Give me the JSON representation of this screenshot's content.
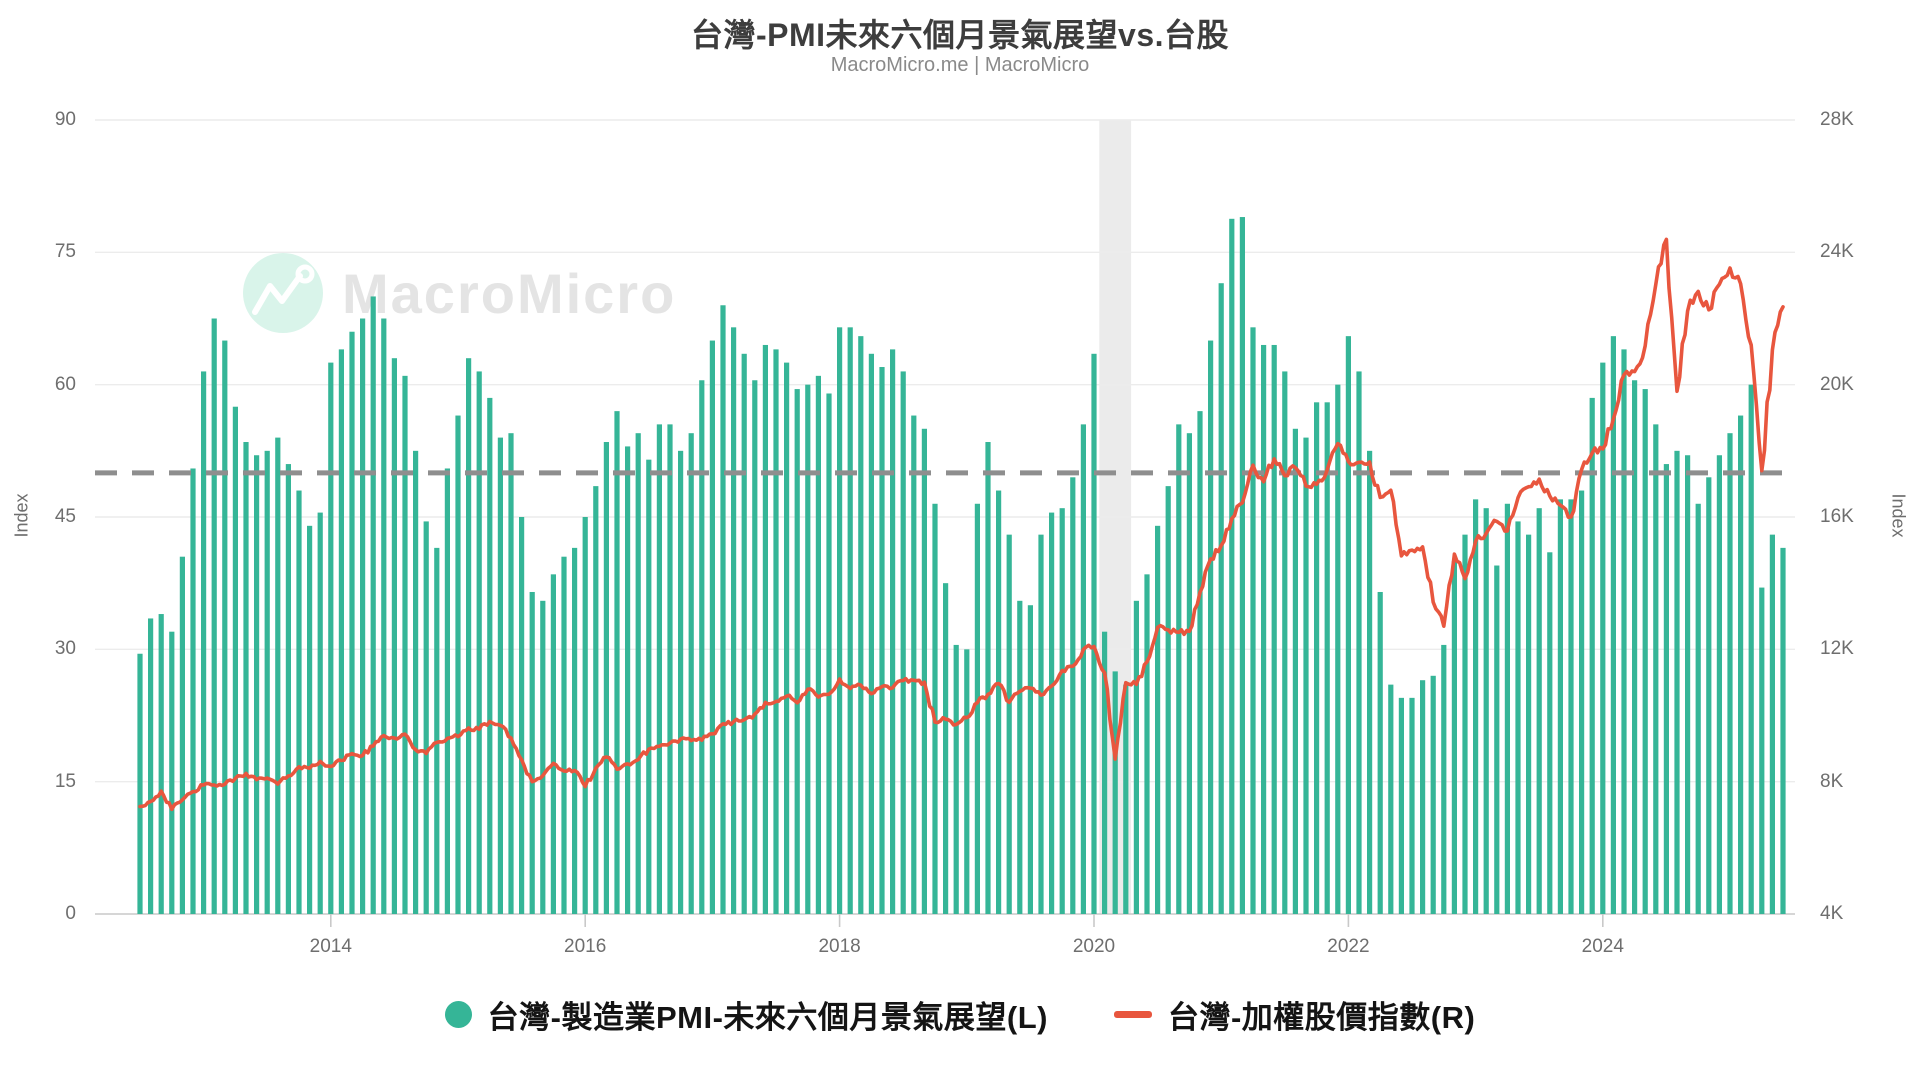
{
  "header": {
    "title": "台灣-PMI未來六個月景氣展望vs.台股",
    "subtitle": "MacroMicro.me | MacroMicro"
  },
  "watermark": {
    "text": "MacroMicro"
  },
  "colors": {
    "bar": "#35b597",
    "line": "#e8563e",
    "reference_dash": "#8e8e8e",
    "grid": "#ececec",
    "axis_baseline": "#c9c9c9",
    "recession_band": "#ebebeb",
    "watermark_circle": "#d9f4ea"
  },
  "chart_data": {
    "type": "combo",
    "title": "台灣-PMI未來六個月景氣展望vs.台股",
    "x_start": "2012-07",
    "frequency": "monthly",
    "x_tick_labels": [
      "2014",
      "2016",
      "2018",
      "2020",
      "2022",
      "2024"
    ],
    "x_tick_month_index": [
      18,
      42,
      66,
      90,
      114,
      138
    ],
    "left_axis": {
      "label": "Index",
      "ticks": [
        0,
        15,
        30,
        45,
        60,
        75,
        90
      ],
      "range": [
        0,
        90
      ]
    },
    "right_axis": {
      "label": "Index",
      "tick_values": [
        4000,
        8000,
        12000,
        16000,
        20000,
        24000,
        28000
      ],
      "tick_labels": [
        "4K",
        "8K",
        "12K",
        "16K",
        "20K",
        "24K",
        "28K"
      ],
      "range": [
        4000,
        28000
      ]
    },
    "reference_line": {
      "axis": "left",
      "value": 50,
      "style": "dashed"
    },
    "recession_band": {
      "from": "2020-02",
      "to": "2020-04",
      "from_index": 91,
      "to_index": 93
    },
    "grid": true,
    "legend_position": "bottom",
    "series": [
      {
        "name": "台灣-製造業PMI-未來六個月景氣展望(L)",
        "type": "bar",
        "axis": "left",
        "color": "#35b597",
        "marker": "circle",
        "values": [
          29.5,
          33.5,
          34,
          32,
          40.5,
          50.5,
          61.5,
          67.5,
          65,
          57.5,
          53.5,
          52,
          52.5,
          54,
          51,
          48,
          44,
          45.5,
          62.5,
          64,
          66,
          67.5,
          70,
          67.5,
          63,
          61,
          52.5,
          44.5,
          41.5,
          50.5,
          56.5,
          63,
          61.5,
          58.5,
          54,
          54.5,
          45,
          36.5,
          35.5,
          38.5,
          40.5,
          41.5,
          45,
          48.5,
          53.5,
          57,
          53,
          54.5,
          51.5,
          55.5,
          55.5,
          52.5,
          54.5,
          60.5,
          65,
          69,
          66.5,
          63.5,
          60.5,
          64.5,
          64,
          62.5,
          59.5,
          60,
          61,
          59,
          66.5,
          66.5,
          65.5,
          63.5,
          62,
          64,
          61.5,
          56.5,
          55,
          46.5,
          37.5,
          30.5,
          30,
          46.5,
          53.5,
          48,
          43,
          35.5,
          35,
          43,
          45.5,
          46,
          49.5,
          55.5,
          63.5,
          32,
          27.5,
          26,
          35.5,
          38.5,
          44,
          48.5,
          55.5,
          54.5,
          57,
          65,
          71.5,
          78.8,
          79,
          66.5,
          64.5,
          64.5,
          61.5,
          55,
          54,
          58,
          58,
          60,
          65.5,
          61.5,
          52.5,
          36.5,
          26,
          24.5,
          24.5,
          26.5,
          27,
          30.5,
          40,
          43,
          47,
          46,
          39.5,
          46.5,
          44.5,
          43,
          46,
          41,
          47,
          47,
          48,
          58.5,
          62.5,
          65.5,
          64,
          60.5,
          59.5,
          55.5,
          51,
          52.5,
          52,
          46.5,
          49.5,
          52,
          54.5,
          56.5,
          60,
          37,
          43,
          41.5
        ]
      },
      {
        "name": "台灣-加權股價指數(R)",
        "type": "line",
        "axis": "right",
        "color": "#e8563e",
        "marker": "line",
        "values": [
          7250,
          7400,
          7715,
          7165,
          7450,
          7700,
          7900,
          7898,
          7919,
          8100,
          8250,
          8062,
          8108,
          7925,
          8173,
          8450,
          8407,
          8612,
          8462,
          8640,
          8849,
          8791,
          9076,
          9393,
          9316,
          9436,
          8967,
          8850,
          9187,
          9307,
          9362,
          9622,
          9586,
          9820,
          9701,
          9323,
          8665,
          8000,
          8181,
          8554,
          8321,
          8338,
          7850,
          8411,
          8744,
          8378,
          8536,
          8666,
          8984,
          9069,
          9166,
          9290,
          9241,
          9254,
          9448,
          9750,
          9812,
          9872,
          10041,
          10395,
          10427,
          10586,
          10384,
          10794,
          10560,
          10643,
          11104,
          10815,
          10919,
          10658,
          10874,
          10837,
          11058,
          11064,
          11006,
          9802,
          9888,
          9727,
          9932,
          10389,
          10641,
          10967,
          10400,
          10731,
          10824,
          10618,
          10893,
          11359,
          11490,
          11997,
          12086,
          11292,
          8681,
          10992,
          10942,
          11621,
          12664,
          12591,
          12515,
          12546,
          13723,
          14732,
          15138,
          15953,
          16431,
          17566,
          17068,
          17755,
          17247,
          17490,
          16935,
          16987,
          17428,
          18218,
          17674,
          17652,
          17663,
          16592,
          16807,
          14825,
          15000,
          15095,
          13425,
          12700,
          14880,
          14137,
          15265,
          15503,
          15868,
          15579,
          16579,
          16916,
          17145,
          16635,
          16353,
          16001,
          17433,
          17930,
          18059,
          18966,
          20294,
          20396,
          21174,
          23032,
          24390,
          19800,
          22224,
          22820,
          22262,
          23035,
          23525,
          23053,
          21200,
          17400,
          21050,
          22350
        ]
      }
    ]
  }
}
